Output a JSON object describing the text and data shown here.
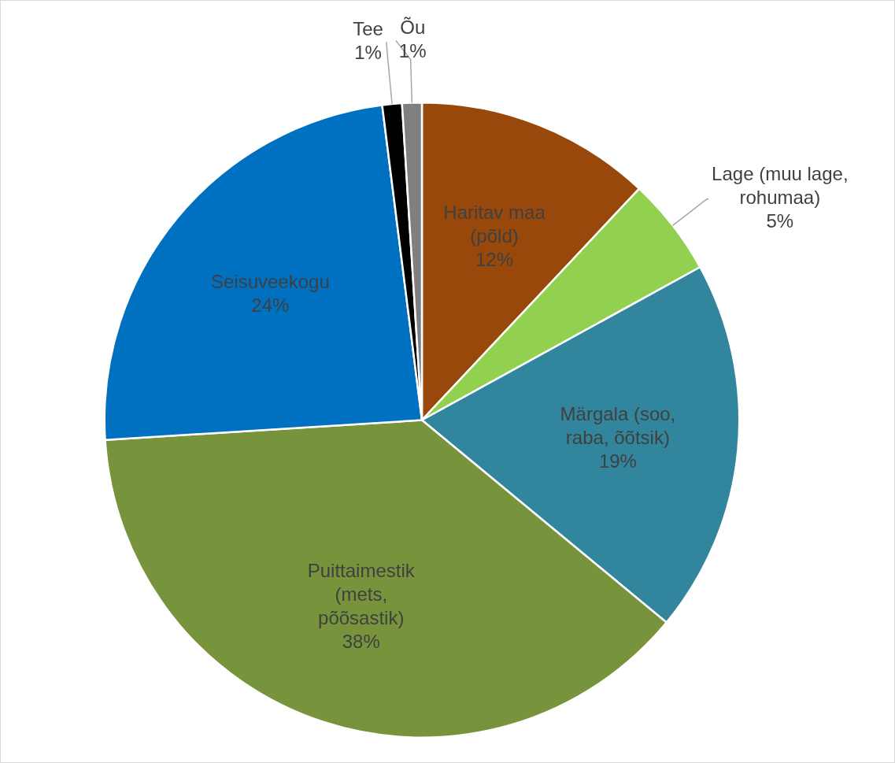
{
  "chart_data": {
    "type": "pie",
    "categories": [
      "Haritav maa (põld)",
      "Lage (muu lage, rohumaa)",
      "Märgala (soo, raba, õõtsik)",
      "Puittaimestik (mets, põõsastik)",
      "Seisuveekogu",
      "Tee",
      "Õu"
    ],
    "values": [
      12,
      5,
      19,
      38,
      24,
      1,
      1
    ],
    "value_labels": [
      "12%",
      "5%",
      "19%",
      "38%",
      "24%",
      "1%",
      "1%"
    ],
    "colors": [
      "#98480a",
      "#92d050",
      "#31859c",
      "#77933c",
      "#0070c0",
      "#000000",
      "#7f7f7f"
    ],
    "legend": false
  }
}
